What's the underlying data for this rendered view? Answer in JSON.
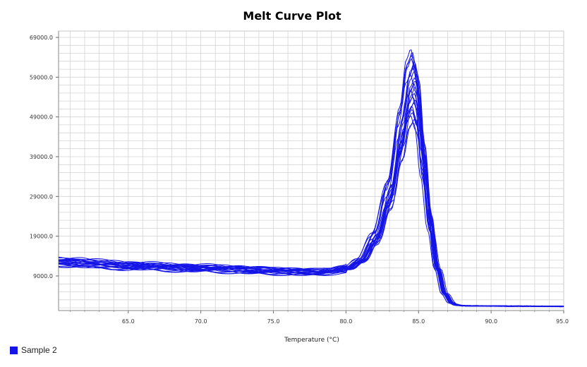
{
  "chart_data": {
    "type": "line",
    "title": "Melt Curve Plot",
    "xlabel": "Temperature (°C)",
    "ylabel": "",
    "xlim": [
      60.2,
      95.0
    ],
    "ylim": [
      300,
      70600
    ],
    "x_ticks": [
      65.0,
      70.0,
      75.0,
      80.0,
      85.0,
      90.0,
      95.0
    ],
    "x_tick_labels": [
      "65.0",
      "70.0",
      "75.0",
      "80.0",
      "85.0",
      "90.0",
      "95.0"
    ],
    "y_ticks": [
      9000,
      19000,
      29000,
      39000,
      49000,
      59000,
      69000
    ],
    "y_tick_labels": [
      "9000.0",
      "19000.0",
      "29000.0",
      "39000.0",
      "49000.0",
      "59000.0",
      "69000.0"
    ],
    "grid": true,
    "legend": {
      "position": "bottom-left",
      "entries": [
        {
          "name": "Sample 2",
          "color": "#1414e6"
        }
      ]
    },
    "series_color": "#1414e6",
    "series_count": 24,
    "series": [
      {
        "name": "Sample 2",
        "x": [
          60.2,
          62.0,
          65.0,
          70.0,
          75.0,
          78.0,
          80.0,
          81.0,
          82.0,
          83.0,
          83.8,
          84.3,
          84.6,
          84.9,
          85.3,
          85.8,
          86.3,
          86.8,
          87.3,
          87.8,
          88.5,
          90.0,
          92.0,
          95.0
        ],
        "y": [
          13000,
          12400,
          11700,
          11000,
          10200,
          9800,
          10800,
          13400,
          20000,
          33000,
          51000,
          63000,
          65500,
          61000,
          44000,
          25000,
          11000,
          4500,
          2200,
          1600,
          1500,
          1450,
          1400,
          1350
        ]
      }
    ]
  }
}
